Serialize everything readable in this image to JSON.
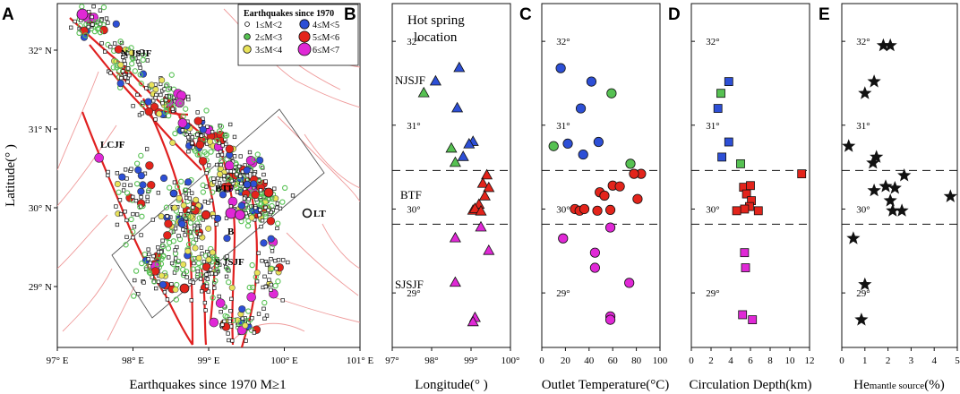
{
  "figure": {
    "panels": {
      "a": "A",
      "b": "B",
      "c": "C",
      "d": "D",
      "e": "E"
    },
    "colors": {
      "fault": "#e02020",
      "minor_fault": "#ef9a9a",
      "green": "#56c152",
      "blue": "#2d4fd6",
      "red": "#e3241b",
      "magenta": "#e028d6",
      "yellow": "#e9e35a",
      "black": "#111111",
      "dash": "#111111"
    }
  },
  "map": {
    "ylabel": "Latitude(° )",
    "xlabel": "Earthquakes since 1970 M≥1",
    "x_ticks": [
      "97° E",
      "98° E",
      "99° E",
      "100° E",
      "101° E"
    ],
    "y_ticks": [
      "29° N",
      "30° N",
      "31° N",
      "32° N"
    ],
    "fault_labels": {
      "njsjf": "N JSJF",
      "lcjf": "LCJF",
      "btf": "BTF",
      "sjsjf": "S JSJF",
      "lt": "LT",
      "b": "B"
    },
    "legend": {
      "title": "Earthquakes since 1970",
      "items": [
        {
          "label": "1≤M<2",
          "color": "#ffffff"
        },
        {
          "label": "2≤M<3",
          "color": "#56c152"
        },
        {
          "label": "3≤M<4",
          "color": "#e9e35a"
        },
        {
          "label": "4≤M<5",
          "color": "#2d4fd6"
        },
        {
          "label": "5≤M<6",
          "color": "#e3241b"
        },
        {
          "label": "6≤M<7",
          "color": "#e028d6"
        }
      ]
    }
  },
  "chart_data": [
    {
      "type": "scatter",
      "panel": "B",
      "title": "Hot spring location",
      "xlabel": "Longitude(° )",
      "ylabel": "",
      "xlim": [
        97,
        100
      ],
      "ylim": [
        28.35,
        32.45
      ],
      "x_ticks": [
        "97°",
        "98°",
        "99°",
        "100°"
      ],
      "y_ticks": [
        "29°",
        "30°",
        "31°",
        "32°"
      ],
      "marker": "triangle",
      "zone_lines": [
        30.46,
        29.82
      ],
      "zone_labels": {
        "north": "NJSJF",
        "middle": "BTF",
        "south": "SJSJF"
      },
      "series": [
        {
          "name": "green",
          "color": "#56c152",
          "points": [
            [
              97.8,
              31.38
            ],
            [
              98.5,
              30.72
            ],
            [
              98.6,
              30.55
            ]
          ]
        },
        {
          "name": "blue",
          "color": "#2d4fd6",
          "points": [
            [
              98.1,
              31.52
            ],
            [
              98.7,
              31.68
            ],
            [
              98.65,
              31.2
            ],
            [
              99.05,
              30.8
            ],
            [
              98.95,
              30.77
            ],
            [
              98.8,
              30.62
            ]
          ]
        },
        {
          "name": "red",
          "color": "#e3241b",
          "points": [
            [
              99.4,
              30.4
            ],
            [
              99.3,
              30.3
            ],
            [
              99.45,
              30.25
            ],
            [
              99.35,
              30.15
            ],
            [
              99.2,
              30.05
            ],
            [
              99.05,
              29.98
            ],
            [
              99.1,
              30.0
            ],
            [
              99.25,
              29.97
            ]
          ]
        },
        {
          "name": "magenta",
          "color": "#e028d6",
          "points": [
            [
              99.25,
              29.78
            ],
            [
              98.6,
              29.65
            ],
            [
              99.45,
              29.5
            ],
            [
              98.6,
              29.12
            ],
            [
              99.1,
              28.7
            ],
            [
              99.05,
              28.65
            ]
          ]
        }
      ]
    },
    {
      "type": "scatter",
      "panel": "C",
      "xlabel": "Outlet Temperature(°C)",
      "xlim": [
        0,
        100
      ],
      "ylim": [
        28.35,
        32.45
      ],
      "x_ticks": [
        "0",
        "20",
        "40",
        "60",
        "80",
        "100"
      ],
      "y_ticks": [
        "29°",
        "30°",
        "31°",
        "32°"
      ],
      "marker": "circle",
      "zone_lines": [
        30.46,
        29.82
      ],
      "series": [
        {
          "name": "green",
          "color": "#56c152",
          "points": [
            [
              10,
              30.75
            ],
            [
              59,
              31.38
            ],
            [
              75,
              30.54
            ]
          ]
        },
        {
          "name": "blue",
          "color": "#2d4fd6",
          "points": [
            [
              16,
              31.68
            ],
            [
              42,
              31.52
            ],
            [
              33,
              31.2
            ],
            [
              22,
              30.78
            ],
            [
              48,
              30.8
            ],
            [
              35,
              30.65
            ]
          ]
        },
        {
          "name": "red",
          "color": "#e3241b",
          "points": [
            [
              84,
              30.42
            ],
            [
              78,
              30.42
            ],
            [
              60,
              30.28
            ],
            [
              66,
              30.27
            ],
            [
              49,
              30.2
            ],
            [
              53,
              30.16
            ],
            [
              81,
              30.12
            ],
            [
              28,
              30.0
            ],
            [
              32,
              29.98
            ],
            [
              36,
              30.0
            ],
            [
              47,
              29.98
            ],
            [
              58,
              29.99
            ]
          ]
        },
        {
          "name": "magenta",
          "color": "#e028d6",
          "points": [
            [
              58,
              29.78
            ],
            [
              18,
              29.65
            ],
            [
              45,
              29.48
            ],
            [
              45,
              29.3
            ],
            [
              74,
              29.12
            ],
            [
              58,
              28.72
            ],
            [
              58,
              28.68
            ]
          ]
        }
      ]
    },
    {
      "type": "scatter",
      "panel": "D",
      "xlabel": "Circulation Depth(km)",
      "xlim": [
        0,
        12
      ],
      "ylim": [
        28.35,
        32.45
      ],
      "x_ticks": [
        "0",
        "2",
        "4",
        "6",
        "8",
        "10",
        "12"
      ],
      "y_ticks": [
        "29°",
        "30°",
        "31°",
        "32°"
      ],
      "marker": "square",
      "zone_lines": [
        30.46,
        29.82
      ],
      "series": [
        {
          "name": "green",
          "color": "#56c152",
          "points": [
            [
              3.0,
              31.38
            ],
            [
              5.0,
              30.54
            ]
          ]
        },
        {
          "name": "blue",
          "color": "#2d4fd6",
          "points": [
            [
              3.8,
              31.52
            ],
            [
              2.7,
              31.2
            ],
            [
              3.8,
              30.8
            ],
            [
              3.1,
              30.62
            ]
          ]
        },
        {
          "name": "red",
          "color": "#e3241b",
          "points": [
            [
              11.2,
              30.42
            ],
            [
              5.3,
              30.26
            ],
            [
              6.0,
              30.28
            ],
            [
              5.6,
              30.18
            ],
            [
              6.1,
              30.1
            ],
            [
              5.9,
              30.03
            ],
            [
              5.4,
              30.0
            ],
            [
              4.6,
              29.98
            ],
            [
              6.8,
              29.98
            ]
          ]
        },
        {
          "name": "magenta",
          "color": "#e028d6",
          "points": [
            [
              5.4,
              29.48
            ],
            [
              5.5,
              29.3
            ],
            [
              5.2,
              28.74
            ],
            [
              6.2,
              28.68
            ]
          ]
        }
      ]
    },
    {
      "type": "scatter",
      "panel": "E",
      "xlabel_main": "He",
      "xlabel_sub": "mantle source",
      "xlabel_unit": "(%)",
      "xlim": [
        0,
        5
      ],
      "ylim": [
        28.35,
        32.45
      ],
      "x_ticks": [
        "0",
        "1",
        "2",
        "3",
        "4",
        "5"
      ],
      "y_ticks": [
        "29°",
        "30°",
        "31°",
        "32°"
      ],
      "marker": "star",
      "zone_lines": [
        30.46,
        29.82
      ],
      "series": [
        {
          "name": "black",
          "color": "#111111",
          "points": [
            [
              1.8,
              31.95
            ],
            [
              2.1,
              31.95
            ],
            [
              1.4,
              31.52
            ],
            [
              1.0,
              31.38
            ],
            [
              0.3,
              30.75
            ],
            [
              1.5,
              30.62
            ],
            [
              1.35,
              30.55
            ],
            [
              2.7,
              30.4
            ],
            [
              1.9,
              30.27
            ],
            [
              2.3,
              30.25
            ],
            [
              1.4,
              30.22
            ],
            [
              4.7,
              30.15
            ],
            [
              2.1,
              30.1
            ],
            [
              2.2,
              29.98
            ],
            [
              2.6,
              29.98
            ],
            [
              0.5,
              29.65
            ],
            [
              1.0,
              29.1
            ],
            [
              0.85,
              28.68
            ]
          ]
        }
      ]
    }
  ]
}
